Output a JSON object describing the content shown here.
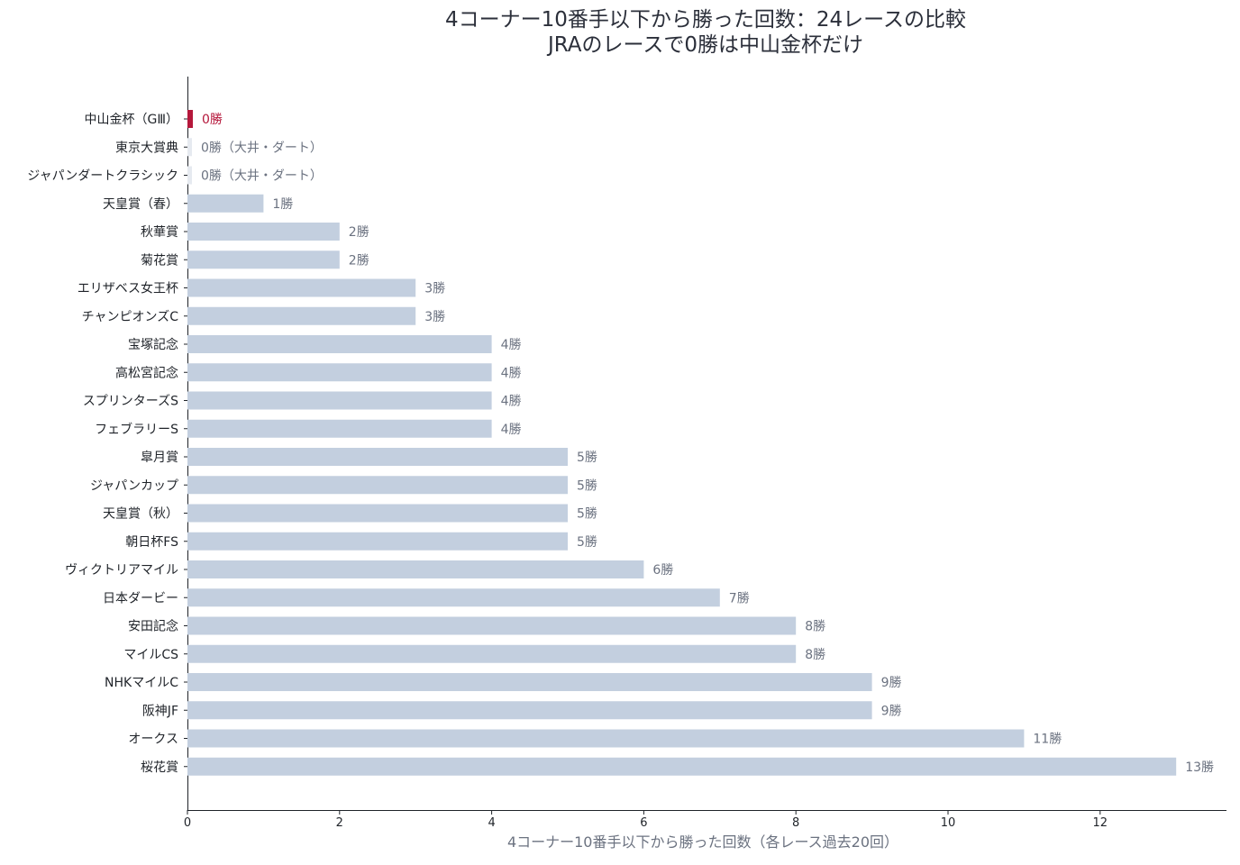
{
  "chart_data": {
    "type": "bar",
    "orientation": "horizontal",
    "title": "4コーナー10番手以下から勝った回数：24レースの比較",
    "subtitle": "JRAのレースで0勝は中山金杯だけ",
    "xlabel": "4コーナー10番手以下から勝った回数（各レース過去20回）",
    "ylabel": "",
    "xlim": [
      0,
      13.6
    ],
    "xticks": [
      0,
      2,
      4,
      6,
      8,
      10,
      12
    ],
    "grid": false,
    "colors": {
      "default": "#c3cfdf",
      "highlight": "#b5173b",
      "non_jra": "#e6eaf0",
      "label": "#6b7280"
    },
    "categories": [
      "中山金杯（GⅢ）",
      "東京大賞典",
      "ジャパンダートクラシック",
      "天皇賞（春）",
      "秋華賞",
      "菊花賞",
      "エリザベス女王杯",
      "チャンピオンズC",
      "宝塚記念",
      "高松宮記念",
      "スプリンターズS",
      "フェブラリーS",
      "皐月賞",
      "ジャパンカップ",
      "天皇賞（秋）",
      "朝日杯FS",
      "ヴィクトリアマイル",
      "日本ダービー",
      "安田記念",
      "マイルCS",
      "NHKマイルC",
      "阪神JF",
      "オークス",
      "桜花賞"
    ],
    "values": [
      0,
      0,
      0,
      1,
      2,
      2,
      3,
      3,
      4,
      4,
      4,
      4,
      5,
      5,
      5,
      5,
      6,
      7,
      8,
      8,
      9,
      9,
      11,
      13
    ],
    "value_labels": [
      "0勝",
      "0勝（大井・ダート）",
      "0勝（大井・ダート）",
      "1勝",
      "2勝",
      "2勝",
      "3勝",
      "3勝",
      "4勝",
      "4勝",
      "4勝",
      "4勝",
      "5勝",
      "5勝",
      "5勝",
      "5勝",
      "6勝",
      "7勝",
      "8勝",
      "8勝",
      "9勝",
      "9勝",
      "11勝",
      "13勝"
    ],
    "highlight_index": 0,
    "non_jra_indices": [
      1,
      2
    ]
  }
}
